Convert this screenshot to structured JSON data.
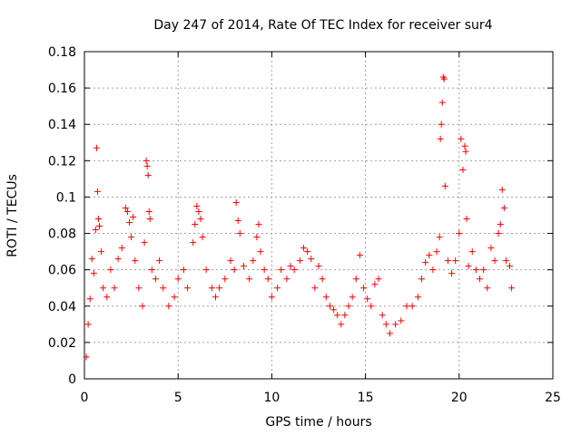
{
  "chart_data": {
    "type": "scatter",
    "title": "Day 247 of 2014, Rate Of TEC Index for receiver sur4",
    "xlabel": "GPS time / hours",
    "ylabel": "ROTI / TECUs",
    "xlim": [
      0,
      25
    ],
    "ylim": [
      0,
      0.18
    ],
    "x_ticks": [
      0,
      5,
      10,
      15,
      20,
      25
    ],
    "x_tick_labels": [
      "0",
      "5",
      "10",
      "15",
      "20",
      "25"
    ],
    "y_ticks": [
      0,
      0.02,
      0.04,
      0.06,
      0.08,
      0.1,
      0.12,
      0.14,
      0.16,
      0.18
    ],
    "y_tick_labels": [
      "0",
      "0.02",
      "0.04",
      "0.06",
      "0.08",
      "0.1",
      "0.12",
      "0.14",
      "0.16",
      "0.18"
    ],
    "grid": true,
    "marker": "+",
    "color": "#ff0000",
    "series": [
      {
        "name": "ROTI",
        "points": [
          [
            0.1,
            0.012
          ],
          [
            0.2,
            0.03
          ],
          [
            0.3,
            0.044
          ],
          [
            0.4,
            0.066
          ],
          [
            0.5,
            0.058
          ],
          [
            0.6,
            0.082
          ],
          [
            0.65,
            0.127
          ],
          [
            0.7,
            0.103
          ],
          [
            0.75,
            0.088
          ],
          [
            0.8,
            0.084
          ],
          [
            0.9,
            0.07
          ],
          [
            1.0,
            0.05
          ],
          [
            1.2,
            0.045
          ],
          [
            1.4,
            0.06
          ],
          [
            1.6,
            0.05
          ],
          [
            1.8,
            0.066
          ],
          [
            2.0,
            0.072
          ],
          [
            2.2,
            0.094
          ],
          [
            2.3,
            0.092
          ],
          [
            2.4,
            0.086
          ],
          [
            2.5,
            0.078
          ],
          [
            2.6,
            0.089
          ],
          [
            2.7,
            0.065
          ],
          [
            2.9,
            0.05
          ],
          [
            3.1,
            0.04
          ],
          [
            3.2,
            0.075
          ],
          [
            3.3,
            0.12
          ],
          [
            3.35,
            0.117
          ],
          [
            3.4,
            0.112
          ],
          [
            3.45,
            0.092
          ],
          [
            3.5,
            0.088
          ],
          [
            3.6,
            0.06
          ],
          [
            3.8,
            0.055
          ],
          [
            4.0,
            0.065
          ],
          [
            4.2,
            0.05
          ],
          [
            4.5,
            0.04
          ],
          [
            4.8,
            0.045
          ],
          [
            5.0,
            0.055
          ],
          [
            5.3,
            0.06
          ],
          [
            5.5,
            0.05
          ],
          [
            5.8,
            0.075
          ],
          [
            5.9,
            0.085
          ],
          [
            6.0,
            0.095
          ],
          [
            6.1,
            0.092
          ],
          [
            6.2,
            0.088
          ],
          [
            6.3,
            0.078
          ],
          [
            6.5,
            0.06
          ],
          [
            6.8,
            0.05
          ],
          [
            7.0,
            0.045
          ],
          [
            7.2,
            0.05
          ],
          [
            7.5,
            0.055
          ],
          [
            7.8,
            0.065
          ],
          [
            8.0,
            0.06
          ],
          [
            8.1,
            0.097
          ],
          [
            8.2,
            0.087
          ],
          [
            8.3,
            0.08
          ],
          [
            8.5,
            0.062
          ],
          [
            8.8,
            0.055
          ],
          [
            9.0,
            0.065
          ],
          [
            9.2,
            0.078
          ],
          [
            9.3,
            0.085
          ],
          [
            9.4,
            0.07
          ],
          [
            9.6,
            0.06
          ],
          [
            9.8,
            0.055
          ],
          [
            10.0,
            0.045
          ],
          [
            10.3,
            0.05
          ],
          [
            10.5,
            0.06
          ],
          [
            10.8,
            0.055
          ],
          [
            11.0,
            0.062
          ],
          [
            11.2,
            0.06
          ],
          [
            11.5,
            0.065
          ],
          [
            11.7,
            0.072
          ],
          [
            11.9,
            0.07
          ],
          [
            12.1,
            0.066
          ],
          [
            12.3,
            0.05
          ],
          [
            12.5,
            0.062
          ],
          [
            12.7,
            0.055
          ],
          [
            12.9,
            0.045
          ],
          [
            13.1,
            0.04
          ],
          [
            13.3,
            0.038
          ],
          [
            13.5,
            0.035
          ],
          [
            13.7,
            0.03
          ],
          [
            13.9,
            0.035
          ],
          [
            14.1,
            0.04
          ],
          [
            14.3,
            0.045
          ],
          [
            14.5,
            0.055
          ],
          [
            14.7,
            0.068
          ],
          [
            14.9,
            0.05
          ],
          [
            15.1,
            0.044
          ],
          [
            15.3,
            0.04
          ],
          [
            15.5,
            0.052
          ],
          [
            15.7,
            0.055
          ],
          [
            15.9,
            0.035
          ],
          [
            16.1,
            0.03
          ],
          [
            16.3,
            0.025
          ],
          [
            16.6,
            0.03
          ],
          [
            16.9,
            0.032
          ],
          [
            17.2,
            0.04
          ],
          [
            17.5,
            0.04
          ],
          [
            17.8,
            0.045
          ],
          [
            18.0,
            0.055
          ],
          [
            18.2,
            0.064
          ],
          [
            18.4,
            0.068
          ],
          [
            18.6,
            0.06
          ],
          [
            18.8,
            0.07
          ],
          [
            18.95,
            0.078
          ],
          [
            19.0,
            0.132
          ],
          [
            19.05,
            0.14
          ],
          [
            19.1,
            0.152
          ],
          [
            19.15,
            0.166
          ],
          [
            19.2,
            0.165
          ],
          [
            19.25,
            0.106
          ],
          [
            19.4,
            0.065
          ],
          [
            19.6,
            0.058
          ],
          [
            19.8,
            0.065
          ],
          [
            20.0,
            0.08
          ],
          [
            20.1,
            0.132
          ],
          [
            20.2,
            0.115
          ],
          [
            20.3,
            0.128
          ],
          [
            20.35,
            0.125
          ],
          [
            20.4,
            0.088
          ],
          [
            20.5,
            0.062
          ],
          [
            20.7,
            0.07
          ],
          [
            20.9,
            0.06
          ],
          [
            21.1,
            0.055
          ],
          [
            21.3,
            0.06
          ],
          [
            21.5,
            0.05
          ],
          [
            21.7,
            0.072
          ],
          [
            21.9,
            0.065
          ],
          [
            22.1,
            0.08
          ],
          [
            22.2,
            0.085
          ],
          [
            22.3,
            0.104
          ],
          [
            22.4,
            0.094
          ],
          [
            22.5,
            0.065
          ],
          [
            22.7,
            0.062
          ],
          [
            22.8,
            0.05
          ]
        ]
      }
    ]
  }
}
